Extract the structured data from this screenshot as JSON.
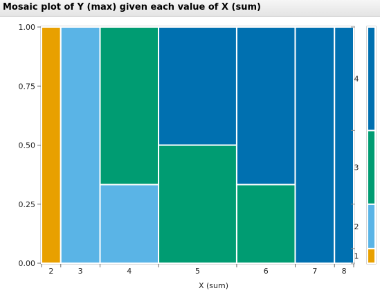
{
  "title": "Mosaic plot of Y (max) given each value of X (sum)",
  "chart_data": {
    "type": "mosaic",
    "xlabel": "X (sum)",
    "ylabel": "",
    "ylim": [
      0,
      1
    ],
    "y_ticks": [
      "0.00",
      "0.25",
      "0.50",
      "0.75",
      "1.00"
    ],
    "levels": [
      "1",
      "2",
      "3",
      "4"
    ],
    "level_colors": [
      "#e8a000",
      "#5ab4e6",
      "#009c72",
      "#0070b0"
    ],
    "columns": [
      {
        "label": "2",
        "width": 0.046,
        "fractions": [
          1,
          0,
          0,
          0
        ]
      },
      {
        "label": "3",
        "width": 0.094,
        "fractions": [
          0,
          1,
          0,
          0
        ]
      },
      {
        "label": "4",
        "width": 0.14,
        "fractions": [
          0,
          0.333,
          0.667,
          0
        ]
      },
      {
        "label": "5",
        "width": 0.187,
        "fractions": [
          0,
          0,
          0.5,
          0.5
        ]
      },
      {
        "label": "6",
        "width": 0.14,
        "fractions": [
          0,
          0,
          0.333,
          0.667
        ]
      },
      {
        "label": "7",
        "width": 0.094,
        "fractions": [
          0,
          0,
          0,
          1
        ]
      },
      {
        "label": "8",
        "width": 0.046,
        "fractions": [
          0,
          0,
          0,
          1
        ]
      }
    ],
    "legend_bar_fractions": [
      0.062,
      0.188,
      0.312,
      0.438
    ]
  }
}
